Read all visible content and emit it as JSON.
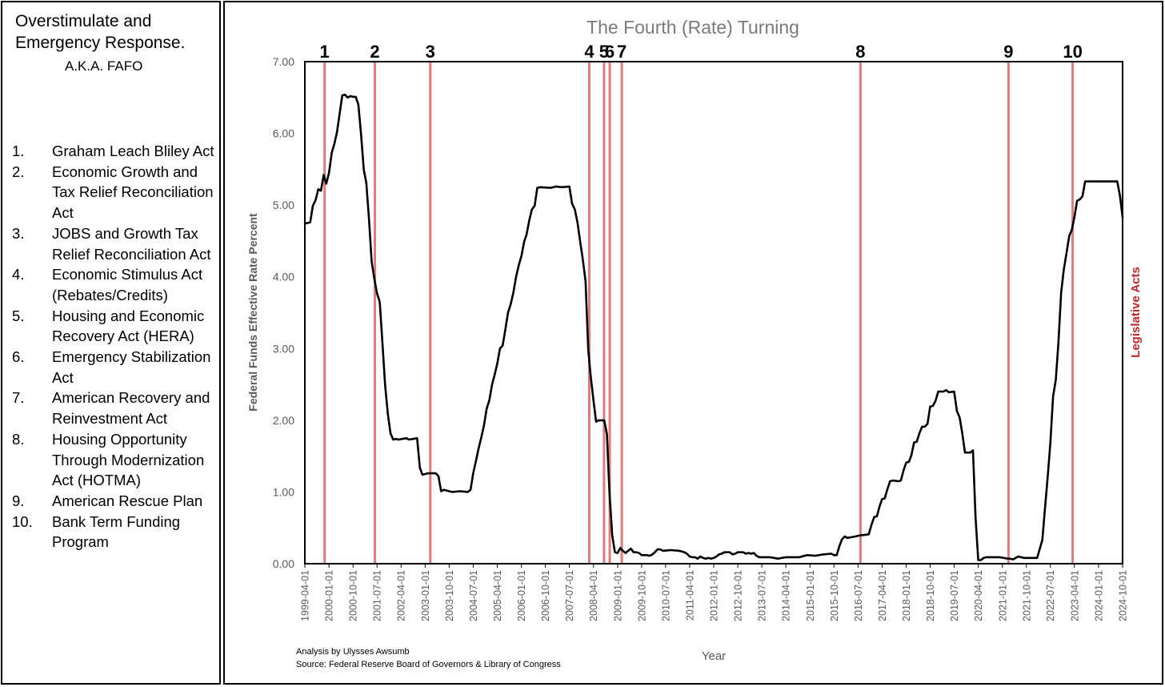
{
  "left_panel": {
    "title_line1": "Overstimulate and",
    "title_line2": "Emergency Response.",
    "subtitle": "A.K.A. FAFO",
    "acts": [
      {
        "num": "1.",
        "name": "Graham Leach Bliley Act"
      },
      {
        "num": "2.",
        "name": "Economic Growth and Tax Relief Reconciliation Act"
      },
      {
        "num": "3.",
        "name": "JOBS and Growth Tax Relief Reconciliation Act"
      },
      {
        "num": "4.",
        "name": "Economic Stimulus Act (Rebates/Credits)"
      },
      {
        "num": "5.",
        "name": "Housing and Economic Recovery Act (HERA)"
      },
      {
        "num": "6.",
        "name": "Emergency Stabilization Act"
      },
      {
        "num": "7.",
        "name": "American Recovery and Reinvestment Act"
      },
      {
        "num": "8.",
        "name": "Housing Opportunity Through Modernization Act (HOTMA)"
      },
      {
        "num": "9.",
        "name": "American Rescue Plan"
      },
      {
        "num": "10.",
        "name": "Bank Term Funding Program"
      }
    ]
  },
  "footnotes": {
    "analysis": "Analysis by Ulysses Awsumb",
    "source": "Source: Federal Reserve  Board of Governors & Library of Congress"
  },
  "chart_data": {
    "type": "line",
    "title": "The Fourth (Rate) Turning",
    "xlabel": "Year",
    "ylabel": "Federal Funds Effective Rate Percent",
    "secondary_label": "Legislative Acts",
    "ylim": [
      0,
      7
    ],
    "y_ticks": [
      "0.00",
      "1.00",
      "2.00",
      "3.00",
      "4.00",
      "5.00",
      "6.00",
      "7.00"
    ],
    "xlim": [
      "1999-04-01",
      "2024-10-01"
    ],
    "x_ticks": [
      "1999-04-01",
      "2000-01-01",
      "2000-10-01",
      "2001-07-01",
      "2002-04-01",
      "2003-01-01",
      "2003-10-01",
      "2004-07-01",
      "2005-04-01",
      "2006-01-01",
      "2006-10-01",
      "2007-07-01",
      "2008-04-01",
      "2009-01-01",
      "2009-10-01",
      "2010-07-01",
      "2011-04-01",
      "2012-01-01",
      "2012-10-01",
      "2013-07-01",
      "2014-04-01",
      "2015-01-01",
      "2015-10-01",
      "2016-07-01",
      "2017-04-01",
      "2018-01-01",
      "2018-10-01",
      "2019-07-01",
      "2020-04-01",
      "2021-01-01",
      "2021-10-01",
      "2022-07-01",
      "2023-04-01",
      "2024-01-01",
      "2024-10-01"
    ],
    "grid": false,
    "line_color": "#000000",
    "marker_color": "#e07b7b",
    "number_color": "#000000",
    "label_color": "#c0282d",
    "series": [
      {
        "points": [
          [
            "1999-04-01",
            4.74
          ],
          [
            "1999-06-01",
            4.76
          ],
          [
            "1999-07-01",
            4.99
          ],
          [
            "1999-08-01",
            5.07
          ],
          [
            "1999-09-01",
            5.22
          ],
          [
            "1999-10-01",
            5.2
          ],
          [
            "1999-11-01",
            5.42
          ],
          [
            "1999-12-01",
            5.3
          ],
          [
            "2000-01-01",
            5.45
          ],
          [
            "2000-02-01",
            5.73
          ],
          [
            "2000-03-01",
            5.85
          ],
          [
            "2000-04-01",
            6.02
          ],
          [
            "2000-05-01",
            6.27
          ],
          [
            "2000-06-01",
            6.53
          ],
          [
            "2000-07-01",
            6.54
          ],
          [
            "2000-08-01",
            6.5
          ],
          [
            "2000-09-01",
            6.52
          ],
          [
            "2000-10-01",
            6.51
          ],
          [
            "2000-11-01",
            6.51
          ],
          [
            "2000-12-01",
            6.4
          ],
          [
            "2001-01-01",
            5.98
          ],
          [
            "2001-02-01",
            5.49
          ],
          [
            "2001-03-01",
            5.31
          ],
          [
            "2001-04-01",
            4.8
          ],
          [
            "2001-05-01",
            4.21
          ],
          [
            "2001-06-01",
            3.97
          ],
          [
            "2001-07-01",
            3.77
          ],
          [
            "2001-08-01",
            3.65
          ],
          [
            "2001-09-01",
            3.07
          ],
          [
            "2001-10-01",
            2.49
          ],
          [
            "2001-11-01",
            2.09
          ],
          [
            "2001-12-01",
            1.82
          ],
          [
            "2002-01-01",
            1.73
          ],
          [
            "2002-02-01",
            1.74
          ],
          [
            "2002-03-01",
            1.73
          ],
          [
            "2002-06-01",
            1.75
          ],
          [
            "2002-07-01",
            1.73
          ],
          [
            "2002-10-01",
            1.75
          ],
          [
            "2002-11-01",
            1.34
          ],
          [
            "2002-12-01",
            1.24
          ],
          [
            "2003-02-01",
            1.26
          ],
          [
            "2003-05-01",
            1.26
          ],
          [
            "2003-06-01",
            1.22
          ],
          [
            "2003-07-01",
            1.01
          ],
          [
            "2003-08-01",
            1.03
          ],
          [
            "2003-11-01",
            1.0
          ],
          [
            "2004-02-01",
            1.01
          ],
          [
            "2004-05-01",
            1.0
          ],
          [
            "2004-06-01",
            1.03
          ],
          [
            "2004-07-01",
            1.26
          ],
          [
            "2004-08-01",
            1.43
          ],
          [
            "2004-09-01",
            1.61
          ],
          [
            "2004-10-01",
            1.76
          ],
          [
            "2004-11-01",
            1.93
          ],
          [
            "2004-12-01",
            2.16
          ],
          [
            "2005-01-01",
            2.28
          ],
          [
            "2005-02-01",
            2.5
          ],
          [
            "2005-03-01",
            2.63
          ],
          [
            "2005-04-01",
            2.79
          ],
          [
            "2005-05-01",
            3.0
          ],
          [
            "2005-06-01",
            3.04
          ],
          [
            "2005-07-01",
            3.26
          ],
          [
            "2005-08-01",
            3.5
          ],
          [
            "2005-09-01",
            3.62
          ],
          [
            "2005-10-01",
            3.78
          ],
          [
            "2005-11-01",
            4.0
          ],
          [
            "2005-12-01",
            4.16
          ],
          [
            "2006-01-01",
            4.29
          ],
          [
            "2006-02-01",
            4.49
          ],
          [
            "2006-03-01",
            4.59
          ],
          [
            "2006-04-01",
            4.79
          ],
          [
            "2006-05-01",
            4.94
          ],
          [
            "2006-06-01",
            4.99
          ],
          [
            "2006-07-01",
            5.24
          ],
          [
            "2006-08-01",
            5.25
          ],
          [
            "2006-12-01",
            5.24
          ],
          [
            "2007-02-01",
            5.26
          ],
          [
            "2007-04-01",
            5.25
          ],
          [
            "2007-07-01",
            5.26
          ],
          [
            "2007-08-01",
            5.02
          ],
          [
            "2007-09-01",
            4.94
          ],
          [
            "2007-10-01",
            4.76
          ],
          [
            "2007-11-01",
            4.49
          ],
          [
            "2007-12-01",
            4.24
          ],
          [
            "2008-01-01",
            3.94
          ],
          [
            "2008-02-01",
            2.98
          ],
          [
            "2008-03-01",
            2.61
          ],
          [
            "2008-04-01",
            2.28
          ],
          [
            "2008-05-01",
            1.98
          ],
          [
            "2008-06-01",
            2.0
          ],
          [
            "2008-08-01",
            2.0
          ],
          [
            "2008-09-01",
            1.81
          ],
          [
            "2008-10-01",
            0.97
          ],
          [
            "2008-11-01",
            0.39
          ],
          [
            "2008-12-01",
            0.16
          ],
          [
            "2009-01-01",
            0.15
          ],
          [
            "2009-02-01",
            0.22
          ],
          [
            "2009-03-01",
            0.18
          ],
          [
            "2009-04-01",
            0.15
          ],
          [
            "2009-05-01",
            0.18
          ],
          [
            "2009-06-01",
            0.21
          ],
          [
            "2009-07-01",
            0.16
          ],
          [
            "2009-08-01",
            0.16
          ],
          [
            "2009-09-01",
            0.15
          ],
          [
            "2009-10-01",
            0.12
          ],
          [
            "2009-12-01",
            0.12
          ],
          [
            "2010-01-01",
            0.11
          ],
          [
            "2010-02-01",
            0.13
          ],
          [
            "2010-03-01",
            0.16
          ],
          [
            "2010-04-01",
            0.2
          ],
          [
            "2010-05-01",
            0.2
          ],
          [
            "2010-06-01",
            0.18
          ],
          [
            "2010-09-01",
            0.19
          ],
          [
            "2010-12-01",
            0.18
          ],
          [
            "2011-01-01",
            0.17
          ],
          [
            "2011-02-01",
            0.16
          ],
          [
            "2011-03-01",
            0.14
          ],
          [
            "2011-04-01",
            0.1
          ],
          [
            "2011-05-01",
            0.09
          ],
          [
            "2011-06-01",
            0.09
          ],
          [
            "2011-07-01",
            0.07
          ],
          [
            "2011-08-01",
            0.1
          ],
          [
            "2011-09-01",
            0.08
          ],
          [
            "2011-10-01",
            0.07
          ],
          [
            "2011-11-01",
            0.08
          ],
          [
            "2011-12-01",
            0.07
          ],
          [
            "2012-01-01",
            0.08
          ],
          [
            "2012-02-01",
            0.1
          ],
          [
            "2012-03-01",
            0.13
          ],
          [
            "2012-04-01",
            0.14
          ],
          [
            "2012-05-01",
            0.16
          ],
          [
            "2012-06-01",
            0.16
          ],
          [
            "2012-07-01",
            0.16
          ],
          [
            "2012-08-01",
            0.13
          ],
          [
            "2012-09-01",
            0.14
          ],
          [
            "2012-10-01",
            0.16
          ],
          [
            "2012-12-01",
            0.16
          ],
          [
            "2013-01-01",
            0.14
          ],
          [
            "2013-02-01",
            0.15
          ],
          [
            "2013-03-01",
            0.14
          ],
          [
            "2013-04-01",
            0.15
          ],
          [
            "2013-05-01",
            0.11
          ],
          [
            "2013-06-01",
            0.09
          ],
          [
            "2013-10-01",
            0.09
          ],
          [
            "2014-01-01",
            0.07
          ],
          [
            "2014-04-01",
            0.09
          ],
          [
            "2014-07-01",
            0.09
          ],
          [
            "2014-09-01",
            0.09
          ],
          [
            "2014-12-01",
            0.12
          ],
          [
            "2015-03-01",
            0.11
          ],
          [
            "2015-06-01",
            0.13
          ],
          [
            "2015-09-01",
            0.14
          ],
          [
            "2015-10-01",
            0.12
          ],
          [
            "2015-11-01",
            0.12
          ],
          [
            "2015-12-01",
            0.24
          ],
          [
            "2016-01-01",
            0.34
          ],
          [
            "2016-02-01",
            0.38
          ],
          [
            "2016-03-01",
            0.36
          ],
          [
            "2016-06-01",
            0.38
          ],
          [
            "2016-07-01",
            0.39
          ],
          [
            "2016-09-01",
            0.4
          ],
          [
            "2016-11-01",
            0.41
          ],
          [
            "2016-12-01",
            0.54
          ],
          [
            "2017-01-01",
            0.65
          ],
          [
            "2017-02-01",
            0.66
          ],
          [
            "2017-03-01",
            0.79
          ],
          [
            "2017-04-01",
            0.9
          ],
          [
            "2017-05-01",
            0.91
          ],
          [
            "2017-06-01",
            1.04
          ],
          [
            "2017-07-01",
            1.15
          ],
          [
            "2017-08-01",
            1.16
          ],
          [
            "2017-10-01",
            1.15
          ],
          [
            "2017-11-01",
            1.16
          ],
          [
            "2017-12-01",
            1.3
          ],
          [
            "2018-01-01",
            1.41
          ],
          [
            "2018-02-01",
            1.42
          ],
          [
            "2018-03-01",
            1.51
          ],
          [
            "2018-04-01",
            1.69
          ],
          [
            "2018-05-01",
            1.7
          ],
          [
            "2018-06-01",
            1.82
          ],
          [
            "2018-07-01",
            1.91
          ],
          [
            "2018-08-01",
            1.91
          ],
          [
            "2018-09-01",
            1.95
          ],
          [
            "2018-10-01",
            2.19
          ],
          [
            "2018-11-01",
            2.2
          ],
          [
            "2018-12-01",
            2.27
          ],
          [
            "2019-01-01",
            2.4
          ],
          [
            "2019-03-01",
            2.4
          ],
          [
            "2019-04-01",
            2.42
          ],
          [
            "2019-05-01",
            2.39
          ],
          [
            "2019-07-01",
            2.4
          ],
          [
            "2019-08-01",
            2.13
          ],
          [
            "2019-09-01",
            2.04
          ],
          [
            "2019-10-01",
            1.83
          ],
          [
            "2019-11-01",
            1.55
          ],
          [
            "2019-12-01",
            1.55
          ],
          [
            "2020-01-01",
            1.55
          ],
          [
            "2020-02-01",
            1.58
          ],
          [
            "2020-03-01",
            0.65
          ],
          [
            "2020-04-01",
            0.05
          ],
          [
            "2020-05-01",
            0.05
          ],
          [
            "2020-06-01",
            0.08
          ],
          [
            "2020-07-01",
            0.09
          ],
          [
            "2020-09-01",
            0.09
          ],
          [
            "2020-12-01",
            0.09
          ],
          [
            "2021-03-01",
            0.07
          ],
          [
            "2021-04-01",
            0.07
          ],
          [
            "2021-05-01",
            0.06
          ],
          [
            "2021-06-01",
            0.08
          ],
          [
            "2021-07-01",
            0.1
          ],
          [
            "2021-09-01",
            0.08
          ],
          [
            "2021-12-01",
            0.08
          ],
          [
            "2022-02-01",
            0.08
          ],
          [
            "2022-03-01",
            0.2
          ],
          [
            "2022-04-01",
            0.33
          ],
          [
            "2022-05-01",
            0.77
          ],
          [
            "2022-06-01",
            1.21
          ],
          [
            "2022-07-01",
            1.68
          ],
          [
            "2022-08-01",
            2.33
          ],
          [
            "2022-09-01",
            2.56
          ],
          [
            "2022-10-01",
            3.08
          ],
          [
            "2022-11-01",
            3.78
          ],
          [
            "2022-12-01",
            4.1
          ],
          [
            "2023-01-01",
            4.33
          ],
          [
            "2023-02-01",
            4.57
          ],
          [
            "2023-03-01",
            4.65
          ],
          [
            "2023-04-01",
            4.83
          ],
          [
            "2023-05-01",
            5.06
          ],
          [
            "2023-06-01",
            5.08
          ],
          [
            "2023-07-01",
            5.12
          ],
          [
            "2023-08-01",
            5.33
          ],
          [
            "2024-08-01",
            5.33
          ],
          [
            "2024-09-01",
            5.13
          ],
          [
            "2024-10-01",
            4.83
          ]
        ]
      }
    ],
    "markers": [
      {
        "label": "1",
        "date": "1999-11-12"
      },
      {
        "label": "2",
        "date": "2001-06-07"
      },
      {
        "label": "3",
        "date": "2003-02-28"
      },
      {
        "label": "4",
        "date": "2008-02-13"
      },
      {
        "label": "5",
        "date": "2008-07-30"
      },
      {
        "label": "6",
        "date": "2008-10-03"
      },
      {
        "label": "7",
        "date": "2009-02-17"
      },
      {
        "label": "8",
        "date": "2016-07-29"
      },
      {
        "label": "9",
        "date": "2021-03-11"
      },
      {
        "label": "10",
        "date": "2023-03-12"
      }
    ]
  }
}
